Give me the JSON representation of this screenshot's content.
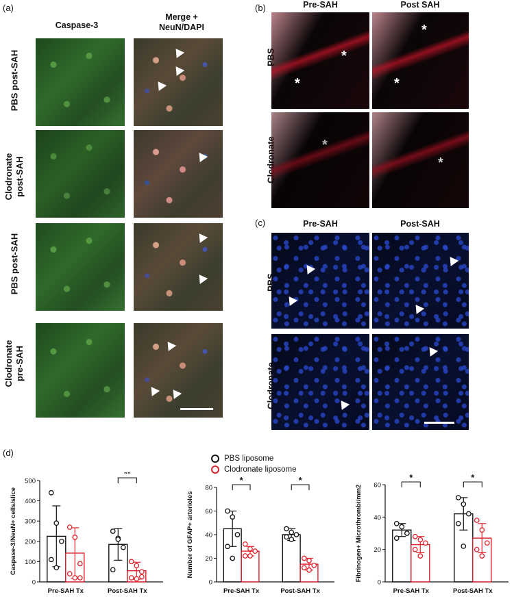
{
  "panel_a": {
    "label": "(a)",
    "col_headers": [
      "Caspase-3",
      "Merge +\nNeuN/DAPI"
    ],
    "col1": "Caspase-3",
    "col2_line1": "Merge +",
    "col2_line2": "NeuN/DAPI",
    "rows": [
      {
        "line1": "PBS post-SAH",
        "line2": ""
      },
      {
        "line1": "Clodronate",
        "line2": "post-SAH"
      },
      {
        "line1": "PBS post-SAH",
        "line2": ""
      },
      {
        "line1": "Clodronate",
        "line2": "pre-SAH"
      }
    ]
  },
  "panel_b": {
    "label": "(b)",
    "col1": "Pre-SAH",
    "col2": "Post SAH",
    "row1": "PBS",
    "row2": "Clodronate",
    "marker": "*"
  },
  "panel_c": {
    "label": "(c)",
    "col1": "Pre-SAH",
    "col2": "Post-SAH",
    "row1": "PBS",
    "row2": "Clodronate"
  },
  "panel_d": {
    "label": "(d)",
    "legend": [
      "PBS liposome",
      "Clodronate liposome"
    ],
    "colors": {
      "pbs": "#111111",
      "clodronate": "#e0202a"
    }
  },
  "chart_data": [
    {
      "type": "bar",
      "ylabel": "Caspase-3/NeuN+ cells/slice",
      "ylim": [
        0,
        500
      ],
      "yticks": [
        0,
        100,
        200,
        300,
        400,
        500
      ],
      "categories": [
        "Pre-SAH Tx",
        "Post-SAH Tx"
      ],
      "series": [
        {
          "name": "PBS liposome",
          "values": [
            225,
            185
          ],
          "sd": [
            150,
            78
          ],
          "points": [
            [
              440,
              290,
              200,
              110,
              70
            ],
            [
              250,
              215,
              170,
              60,
              210
            ]
          ]
        },
        {
          "name": "Clodronate liposome",
          "values": [
            142,
            55
          ],
          "sd": [
            125,
            42
          ],
          "points": [
            [
              270,
              220,
              90,
              40,
              20,
              20
            ],
            [
              100,
              80,
              50,
              20,
              15,
              25
            ]
          ]
        }
      ],
      "significance": [
        {
          "category": "Post-SAH Tx",
          "text": "**"
        }
      ]
    },
    {
      "type": "bar",
      "ylabel": "Number of GFAP+ arterioles",
      "ylim": [
        0,
        80
      ],
      "yticks": [
        0,
        20,
        40,
        60,
        80
      ],
      "categories": [
        "Pre-SAH Tx",
        "Post-SAH Tx"
      ],
      "series": [
        {
          "name": "PBS liposome",
          "values": [
            45,
            40
          ],
          "sd": [
            15,
            5
          ],
          "points": [
            [
              60,
              55,
              40,
              30,
              20
            ],
            [
              45,
              42,
              40,
              38,
              36
            ]
          ]
        },
        {
          "name": "Clodronate liposome",
          "values": [
            26,
            15
          ],
          "sd": [
            4,
            5
          ],
          "points": [
            [
              32,
              28,
              26,
              22,
              22
            ],
            [
              20,
              18,
              14,
              12,
              10
            ]
          ]
        }
      ],
      "significance": [
        {
          "category": "Pre-SAH Tx",
          "text": "*"
        },
        {
          "category": "Post-SAH Tx",
          "text": "*"
        }
      ]
    },
    {
      "type": "bar",
      "ylabel": "Fibrinogen+ Microthrombi/mm2",
      "ylim": [
        0,
        60
      ],
      "yticks": [
        0,
        20,
        40,
        60
      ],
      "categories": [
        "Pre-SAH Tx",
        "Post-SAH Tx"
      ],
      "series": [
        {
          "name": "PBS liposome",
          "values": [
            32,
            42
          ],
          "sd": [
            4,
            10
          ],
          "points": [
            [
              36,
              34,
              30,
              27
            ],
            [
              52,
              48,
              42,
              36,
              22
            ]
          ]
        },
        {
          "name": "Clodronate liposome",
          "values": [
            23,
            27
          ],
          "sd": [
            5,
            9
          ],
          "points": [
            [
              28,
              26,
              24,
              20,
              16
            ],
            [
              38,
              32,
              24,
              20,
              16
            ]
          ]
        }
      ],
      "significance": [
        {
          "category": "Pre-SAH Tx",
          "text": "*"
        },
        {
          "category": "Post-SAH Tx",
          "text": "*"
        }
      ]
    }
  ]
}
